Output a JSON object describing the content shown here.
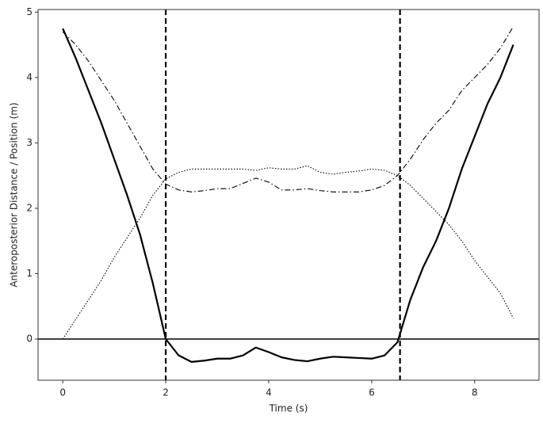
{
  "chart_data": {
    "type": "line",
    "x_label": "Time (s)",
    "y_label": "Anteroposterior Distance / Position (m)",
    "x": [
      0,
      0.25,
      0.5,
      0.75,
      1,
      1.25,
      1.5,
      1.75,
      2,
      2.25,
      2.5,
      2.75,
      3,
      3.25,
      3.5,
      3.75,
      4,
      4.25,
      4.5,
      4.75,
      5,
      5.25,
      5.5,
      5.75,
      6,
      6.25,
      6.5,
      6.75,
      7,
      7.25,
      7.5,
      7.75,
      8,
      8.25,
      8.5,
      8.75
    ],
    "series": [
      {
        "color": "#000000",
        "style": "solid",
        "values": [
          4.75,
          4.3,
          3.8,
          3.3,
          2.75,
          2.2,
          1.6,
          0.85,
          0.0,
          -0.25,
          -0.35,
          -0.33,
          -0.3,
          -0.3,
          -0.25,
          -0.13,
          -0.2,
          -0.28,
          -0.32,
          -0.34,
          -0.3,
          -0.27,
          -0.28,
          -0.29,
          -0.3,
          -0.25,
          -0.05,
          0.6,
          1.1,
          1.5,
          2.0,
          2.6,
          3.1,
          3.6,
          4.0,
          4.5
        ]
      },
      {
        "color": "#000000",
        "style": "dashdot",
        "values": [
          4.7,
          4.5,
          4.25,
          3.95,
          3.65,
          3.3,
          2.95,
          2.6,
          2.37,
          2.28,
          2.25,
          2.27,
          2.3,
          2.3,
          2.38,
          2.46,
          2.4,
          2.28,
          2.28,
          2.3,
          2.27,
          2.25,
          2.25,
          2.25,
          2.28,
          2.35,
          2.5,
          2.75,
          3.05,
          3.3,
          3.5,
          3.8,
          4.0,
          4.2,
          4.45,
          4.78
        ]
      },
      {
        "color": "#000000",
        "style": "dotted",
        "values": [
          0.0,
          0.3,
          0.6,
          0.9,
          1.25,
          1.55,
          1.85,
          2.2,
          2.45,
          2.55,
          2.6,
          2.6,
          2.6,
          2.6,
          2.6,
          2.58,
          2.62,
          2.6,
          2.6,
          2.65,
          2.55,
          2.52,
          2.55,
          2.57,
          2.6,
          2.58,
          2.5,
          2.35,
          2.15,
          1.95,
          1.75,
          1.5,
          1.2,
          0.95,
          0.7,
          0.32
        ]
      }
    ],
    "vlines": [
      2.0,
      6.55
    ],
    "hline": 0,
    "xlim": [
      -0.48,
      9.25
    ],
    "ylim": [
      -0.63,
      5.04
    ],
    "xticks": [
      0,
      2,
      4,
      6,
      8
    ],
    "yticks": [
      0,
      1,
      2,
      3,
      4,
      5
    ]
  }
}
